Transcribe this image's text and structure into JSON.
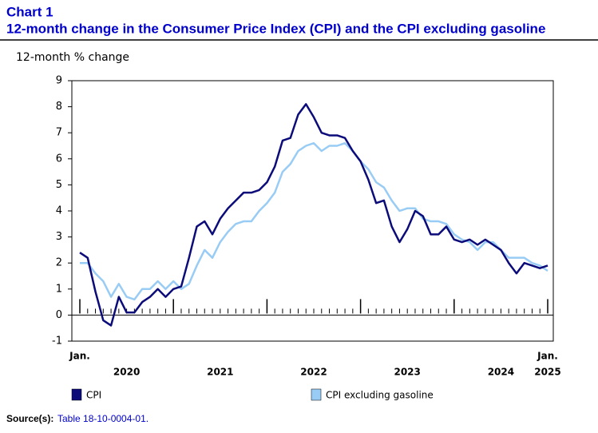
{
  "chart_data": {
    "type": "line",
    "title": "Chart 1",
    "subtitle": "12-month change in the Consumer Price Index (CPI) and the CPI excluding gasoline",
    "y_label": "12-month % change",
    "categories": [
      "Jan.",
      null,
      null,
      null,
      null,
      null,
      null,
      null,
      null,
      null,
      null,
      null,
      null,
      null,
      null,
      null,
      null,
      null,
      null,
      null,
      null,
      null,
      null,
      null,
      null,
      null,
      null,
      null,
      null,
      null,
      null,
      null,
      null,
      null,
      null,
      null,
      null,
      null,
      null,
      null,
      null,
      null,
      null,
      null,
      null,
      null,
      null,
      null,
      null,
      null,
      null,
      null,
      null,
      null,
      null,
      null,
      null,
      null,
      null,
      null,
      "Jan."
    ],
    "x_groups": [
      "2020",
      "2021",
      "2022",
      "2023",
      "2024",
      "2025"
    ],
    "series": [
      {
        "name": "CPI",
        "color": "#0b0b7a",
        "values": [
          2.4,
          2.2,
          0.9,
          -0.2,
          -0.4,
          0.7,
          0.1,
          0.1,
          0.5,
          0.7,
          1.0,
          0.7,
          1.0,
          1.1,
          2.2,
          3.4,
          3.6,
          3.1,
          3.7,
          4.1,
          4.4,
          4.7,
          4.7,
          4.8,
          5.1,
          5.7,
          6.7,
          6.8,
          7.7,
          8.1,
          7.6,
          7.0,
          6.9,
          6.9,
          6.8,
          6.3,
          5.9,
          5.2,
          4.3,
          4.4,
          3.4,
          2.8,
          3.3,
          4.0,
          3.8,
          3.1,
          3.1,
          3.4,
          2.9,
          2.8,
          2.9,
          2.7,
          2.9,
          2.7,
          2.5,
          2.0,
          1.6,
          2.0,
          1.9,
          1.8,
          1.9
        ]
      },
      {
        "name": "CPI excluding gasoline",
        "color": "#99ccf5",
        "values": [
          2.0,
          2.0,
          1.6,
          1.3,
          0.7,
          1.2,
          0.7,
          0.6,
          1.0,
          1.0,
          1.3,
          1.0,
          1.3,
          1.0,
          1.2,
          1.9,
          2.5,
          2.2,
          2.8,
          3.2,
          3.5,
          3.6,
          3.6,
          4.0,
          4.3,
          4.7,
          5.5,
          5.8,
          6.3,
          6.5,
          6.6,
          6.3,
          6.5,
          6.5,
          6.6,
          6.3,
          5.9,
          5.6,
          5.1,
          4.9,
          4.4,
          4.0,
          4.1,
          4.1,
          3.7,
          3.6,
          3.6,
          3.5,
          3.1,
          2.9,
          2.8,
          2.5,
          2.8,
          2.8,
          2.5,
          2.2,
          2.2,
          2.2,
          2.0,
          1.9,
          1.7
        ]
      }
    ],
    "ylim": [
      -1,
      9
    ],
    "yticks": [
      -1,
      0,
      1,
      2,
      3,
      4,
      5,
      6,
      7,
      8,
      9
    ],
    "source_label": "Source(s):",
    "source_text": "Table 18-10-0004-01."
  }
}
